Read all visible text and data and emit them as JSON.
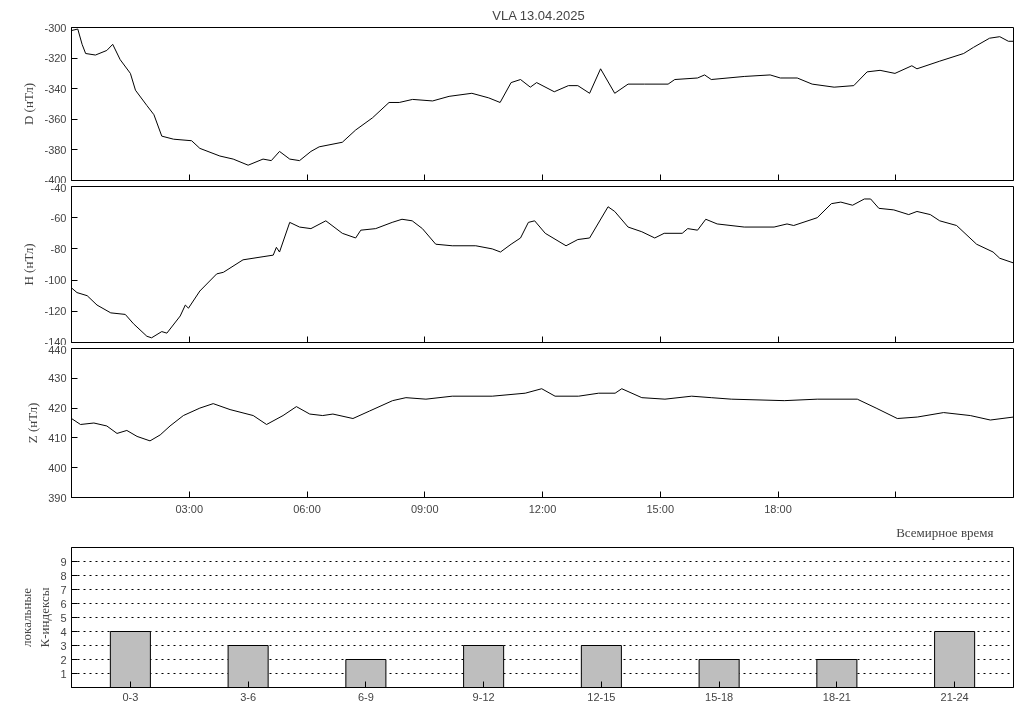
{
  "chart_data": [
    {
      "type": "line",
      "title": "VLA   13.04.2025",
      "ylabel": "D (нТл)",
      "color": "#000000",
      "grid": false,
      "tick_labels": "y",
      "xlim": [
        0,
        24
      ],
      "xticks": [
        {
          "value": 3,
          "label": null
        },
        {
          "value": 6,
          "label": null
        },
        {
          "value": 9,
          "label": null
        },
        {
          "value": 12,
          "label": null
        },
        {
          "value": 15,
          "label": null
        },
        {
          "value": 18,
          "label": null
        },
        {
          "value": 21,
          "label": null
        }
      ],
      "ylim": [
        -400,
        -300
      ],
      "yticks": [
        -400,
        -380,
        -360,
        -340,
        -320,
        -300
      ],
      "x": [
        0,
        0.16,
        0.27,
        0.36,
        0.61,
        0.9,
        1.05,
        1.24,
        1.5,
        1.63,
        1.92,
        2.1,
        2.3,
        2.6,
        3.06,
        3.27,
        3.78,
        4.12,
        4.5,
        4.88,
        5.09,
        5.3,
        5.56,
        5.81,
        6.1,
        6.31,
        6.9,
        7.24,
        7.67,
        8.09,
        8.35,
        8.69,
        9.2,
        9.62,
        10.2,
        10.63,
        10.92,
        11.2,
        11.44,
        11.69,
        11.85,
        12.3,
        12.66,
        12.9,
        13.2,
        13.48,
        13.84,
        14.18,
        14.6,
        15.2,
        15.37,
        15.95,
        16.13,
        16.3,
        17.14,
        17.8,
        18.06,
        18.49,
        18.87,
        19.43,
        19.93,
        20.27,
        20.6,
        20.98,
        21.41,
        21.54,
        22.12,
        22.73,
        22.98,
        23.39,
        23.65,
        23.87,
        24
      ],
      "values": [
        -302,
        -301,
        -311,
        -317,
        -318,
        -315,
        -311,
        -321,
        -330,
        -341,
        -351,
        -357,
        -371,
        -373,
        -374,
        -379,
        -384,
        -386,
        -390,
        -386,
        -387,
        -381,
        -386,
        -387,
        -381,
        -378,
        -375,
        -367,
        -359,
        -349,
        -349,
        -347,
        -348,
        -345,
        -343,
        -346,
        -349,
        -336,
        -334,
        -339,
        -336,
        -342,
        -338,
        -338,
        -343,
        -327,
        -343,
        -337,
        -337,
        -337,
        -334,
        -333,
        -331,
        -334,
        -332,
        -331,
        -333,
        -333,
        -337,
        -339,
        -338,
        -329,
        -328,
        -330,
        -325,
        -327,
        -322,
        -317,
        -313,
        -307,
        -306,
        -309,
        -309
      ]
    },
    {
      "type": "line",
      "ylabel": "H (нТл)",
      "color": "#000000",
      "grid": false,
      "tick_labels": "y",
      "xlim": [
        0,
        24
      ],
      "xticks": [
        {
          "value": 3,
          "label": null
        },
        {
          "value": 6,
          "label": null
        },
        {
          "value": 9,
          "label": null
        },
        {
          "value": 12,
          "label": null
        },
        {
          "value": 15,
          "label": null
        },
        {
          "value": 18,
          "label": null
        },
        {
          "value": 21,
          "label": null
        }
      ],
      "ylim": [
        -140,
        -40
      ],
      "yticks": [
        -140,
        -120,
        -100,
        -80,
        -60,
        -40
      ],
      "x": [
        0,
        0.14,
        0.4,
        0.65,
        1.0,
        1.37,
        1.58,
        1.92,
        2.04,
        2.3,
        2.43,
        2.77,
        2.9,
        2.98,
        3.27,
        3.7,
        3.87,
        4.37,
        4.88,
        5.14,
        5.22,
        5.3,
        5.56,
        5.81,
        6.1,
        6.48,
        6.9,
        7.24,
        7.37,
        7.75,
        8.17,
        8.42,
        8.68,
        8.94,
        9.28,
        9.7,
        10.3,
        10.72,
        10.93,
        11.2,
        11.44,
        11.64,
        11.8,
        12.07,
        12.6,
        12.9,
        13.2,
        13.67,
        13.84,
        14.18,
        14.53,
        14.86,
        15.1,
        15.56,
        15.7,
        15.95,
        16.16,
        16.45,
        17.14,
        17.9,
        18.23,
        18.4,
        19.0,
        19.36,
        19.6,
        19.9,
        20.2,
        20.36,
        20.57,
        20.95,
        21.33,
        21.54,
        21.88,
        22.12,
        22.55,
        23.06,
        23.48,
        23.65,
        24
      ],
      "values": [
        -105,
        -108,
        -110,
        -116,
        -121,
        -122,
        -128,
        -136,
        -137,
        -133,
        -134,
        -123,
        -116,
        -118,
        -107,
        -96,
        -95,
        -87,
        -85,
        -84,
        -79,
        -82,
        -63,
        -66,
        -67,
        -62,
        -70,
        -73,
        -68,
        -67,
        -63,
        -61,
        -62,
        -67,
        -77,
        -78,
        -78,
        -80,
        -82,
        -77,
        -73,
        -63,
        -62,
        -70,
        -78,
        -74,
        -73,
        -53,
        -56,
        -66,
        -69,
        -73,
        -70,
        -70,
        -67,
        -68,
        -61,
        -64,
        -66,
        -66,
        -64,
        -65,
        -60,
        -51,
        -50,
        -52,
        -48,
        -48,
        -54,
        -55,
        -58,
        -56,
        -58,
        -62,
        -65,
        -77,
        -82,
        -86,
        -89
      ]
    },
    {
      "type": "line",
      "ylabel": "Z (нТл)",
      "xlabel": "Всемирное время",
      "color": "#000000",
      "grid": false,
      "xlim": [
        0,
        24
      ],
      "xticks": [
        {
          "value": 3,
          "label": "03:00"
        },
        {
          "value": 6,
          "label": "06:00"
        },
        {
          "value": 9,
          "label": "09:00"
        },
        {
          "value": 12,
          "label": "12:00"
        },
        {
          "value": 15,
          "label": "15:00"
        },
        {
          "value": 18,
          "label": "18:00"
        },
        {
          "value": 21,
          "label": null
        }
      ],
      "ylim": [
        390,
        440
      ],
      "yticks": [
        390,
        400,
        410,
        420,
        430,
        440
      ],
      "x": [
        0,
        0.23,
        0.57,
        0.9,
        1.16,
        1.41,
        1.67,
        2.0,
        2.26,
        2.51,
        2.85,
        3.27,
        3.61,
        4.04,
        4.63,
        4.97,
        5.39,
        5.73,
        6.07,
        6.4,
        6.66,
        7.17,
        7.59,
        8.18,
        8.52,
        9.03,
        9.7,
        10.72,
        11.56,
        11.98,
        12.32,
        12.92,
        13.43,
        13.85,
        14.02,
        14.53,
        15.12,
        15.8,
        16.3,
        16.81,
        18.16,
        19.0,
        20.02,
        20.5,
        21.04,
        21.55,
        22.22,
        22.9,
        23.41,
        24
      ],
      "values": [
        416.5,
        414.5,
        415,
        414,
        411.5,
        412.5,
        410.5,
        409,
        411,
        414,
        417.5,
        420,
        421.5,
        419.5,
        417.5,
        414.5,
        417.5,
        420.5,
        418,
        417.5,
        418,
        416.5,
        419,
        422.5,
        423.5,
        423,
        424,
        424,
        425,
        426.5,
        424,
        424,
        425,
        425,
        426.5,
        423.5,
        423,
        424,
        423.5,
        423,
        422.5,
        423,
        423,
        420,
        416.5,
        417,
        418.5,
        417.5,
        416,
        417
      ]
    },
    {
      "type": "bar",
      "ylabel": "локальные\nК-индексы",
      "categories": [
        "0-3",
        "3-6",
        "6-9",
        "9-12",
        "12-15",
        "15-18",
        "18-21",
        "21-24"
      ],
      "values": [
        4,
        3,
        2,
        3,
        3,
        2,
        2,
        4
      ],
      "color": "#bebebe",
      "grid": "y",
      "ylim": [
        0,
        10
      ],
      "yticks": [
        1,
        2,
        3,
        4,
        5,
        6,
        7,
        8,
        9
      ]
    }
  ]
}
